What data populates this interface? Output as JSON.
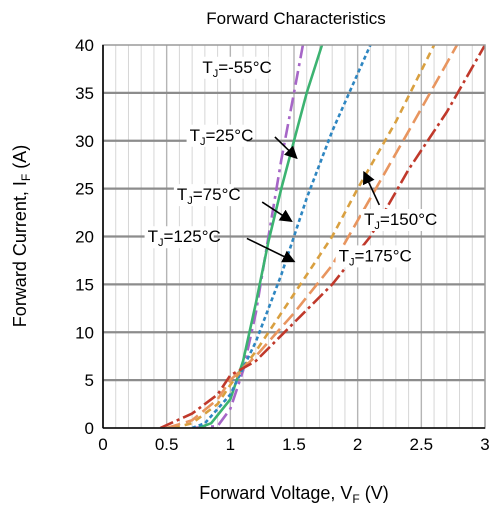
{
  "chart_data": {
    "type": "line",
    "title": "Forward Characteristics",
    "xlabel": {
      "main": "Forward Voltage, V",
      "sub": "F",
      "unit": " (V)"
    },
    "ylabel": {
      "main": "Forward Current, I",
      "sub": "F",
      "unit": " (A)"
    },
    "xlim": [
      0,
      3
    ],
    "ylim": [
      0,
      40
    ],
    "x_ticks": [
      {
        "value": 0,
        "label": "0"
      },
      {
        "value": 0.5,
        "label": "0.5"
      },
      {
        "value": 1,
        "label": "1"
      },
      {
        "value": 1.5,
        "label": "1.5"
      },
      {
        "value": 2,
        "label": "2"
      },
      {
        "value": 2.5,
        "label": "2.5"
      },
      {
        "value": 3,
        "label": "3"
      }
    ],
    "y_ticks": [
      {
        "value": 0,
        "label": "0"
      },
      {
        "value": 5,
        "label": "5"
      },
      {
        "value": 10,
        "label": "10"
      },
      {
        "value": 15,
        "label": "15"
      },
      {
        "value": 20,
        "label": "20"
      },
      {
        "value": 25,
        "label": "25"
      },
      {
        "value": 30,
        "label": "30"
      },
      {
        "value": 35,
        "label": "35"
      },
      {
        "value": 40,
        "label": "40"
      }
    ],
    "grid": true,
    "series": [
      {
        "name": "TJ=-55°C",
        "color": "#a666c7",
        "dash": "14,5,3,5",
        "points": [
          [
            0.7,
            0
          ],
          [
            0.9,
            0.2
          ],
          [
            1.0,
            2
          ],
          [
            1.1,
            6
          ],
          [
            1.2,
            12
          ],
          [
            1.3,
            20
          ],
          [
            1.4,
            28
          ],
          [
            1.5,
            35
          ],
          [
            1.57,
            40
          ]
        ]
      },
      {
        "name": "TJ=25°C",
        "color": "#3cb371",
        "dash": "",
        "points": [
          [
            0.75,
            0
          ],
          [
            0.85,
            0.5
          ],
          [
            1.0,
            3
          ],
          [
            1.1,
            7
          ],
          [
            1.2,
            13
          ],
          [
            1.3,
            19.5
          ],
          [
            1.4,
            25
          ],
          [
            1.5,
            30
          ],
          [
            1.6,
            35
          ],
          [
            1.72,
            40
          ]
        ]
      },
      {
        "name": "TJ=75°C",
        "color": "#2e86c1",
        "dash": "4,3",
        "points": [
          [
            0.7,
            0
          ],
          [
            0.8,
            0.5
          ],
          [
            1.0,
            3.5
          ],
          [
            1.2,
            9
          ],
          [
            1.4,
            16
          ],
          [
            1.5,
            20
          ],
          [
            1.6,
            24
          ],
          [
            1.8,
            31
          ],
          [
            2.0,
            37
          ],
          [
            2.1,
            40
          ]
        ]
      },
      {
        "name": "TJ=125°C",
        "color": "#d9a040",
        "dash": "7,5",
        "points": [
          [
            0.55,
            0
          ],
          [
            0.7,
            0.5
          ],
          [
            0.9,
            2.5
          ],
          [
            1.0,
            4.5
          ],
          [
            1.2,
            8
          ],
          [
            1.5,
            14
          ],
          [
            1.8,
            20
          ],
          [
            2.0,
            25
          ],
          [
            2.3,
            32
          ],
          [
            2.6,
            40
          ]
        ]
      },
      {
        "name": "TJ=150°C",
        "color": "#e8955f",
        "dash": "14,6",
        "points": [
          [
            0.5,
            0
          ],
          [
            0.7,
            0.8
          ],
          [
            0.9,
            3
          ],
          [
            1.0,
            5
          ],
          [
            1.2,
            7.5
          ],
          [
            1.5,
            12
          ],
          [
            1.8,
            17
          ],
          [
            2.1,
            24
          ],
          [
            2.4,
            31
          ],
          [
            2.78,
            40
          ]
        ]
      },
      {
        "name": "TJ=175°C",
        "color": "#c0392b",
        "dash": "14,4,3,4",
        "points": [
          [
            0.45,
            0
          ],
          [
            0.7,
            1.5
          ],
          [
            0.9,
            3.5
          ],
          [
            1.0,
            5.5
          ],
          [
            1.2,
            7
          ],
          [
            1.5,
            11
          ],
          [
            1.8,
            15
          ],
          [
            2.1,
            20
          ],
          [
            2.4,
            27
          ],
          [
            2.7,
            33
          ],
          [
            3.0,
            40
          ]
        ]
      }
    ],
    "annotations": [
      {
        "text": "T",
        "sub": "J",
        "rest": "=-55°C",
        "label_at": [
          0.78,
          37.1
        ],
        "arrow": null
      },
      {
        "text": "T",
        "sub": "J",
        "rest": "=25°C",
        "label_at": [
          0.68,
          30.0
        ],
        "arrow": [
          [
            1.35,
            30.4
          ],
          [
            1.52,
            28.2
          ]
        ]
      },
      {
        "text": "T",
        "sub": "J",
        "rest": "=75°C",
        "label_at": [
          0.58,
          23.8
        ],
        "arrow": [
          [
            1.25,
            23.6
          ],
          [
            1.48,
            21.6
          ]
        ]
      },
      {
        "text": "T",
        "sub": "J",
        "rest": "=125°C",
        "label_at": [
          0.35,
          19.4
        ],
        "arrow": [
          [
            1.13,
            19.8
          ],
          [
            1.5,
            17.4
          ]
        ]
      },
      {
        "text": "T",
        "sub": "J",
        "rest": "=150°C",
        "label_at": [
          2.05,
          21.2
        ],
        "arrow": [
          [
            2.17,
            23.3
          ],
          [
            2.05,
            26.7
          ]
        ]
      },
      {
        "text": "T",
        "sub": "J",
        "rest": "=175°C",
        "label_at": [
          1.85,
          17.4
        ],
        "arrow": null
      }
    ]
  }
}
